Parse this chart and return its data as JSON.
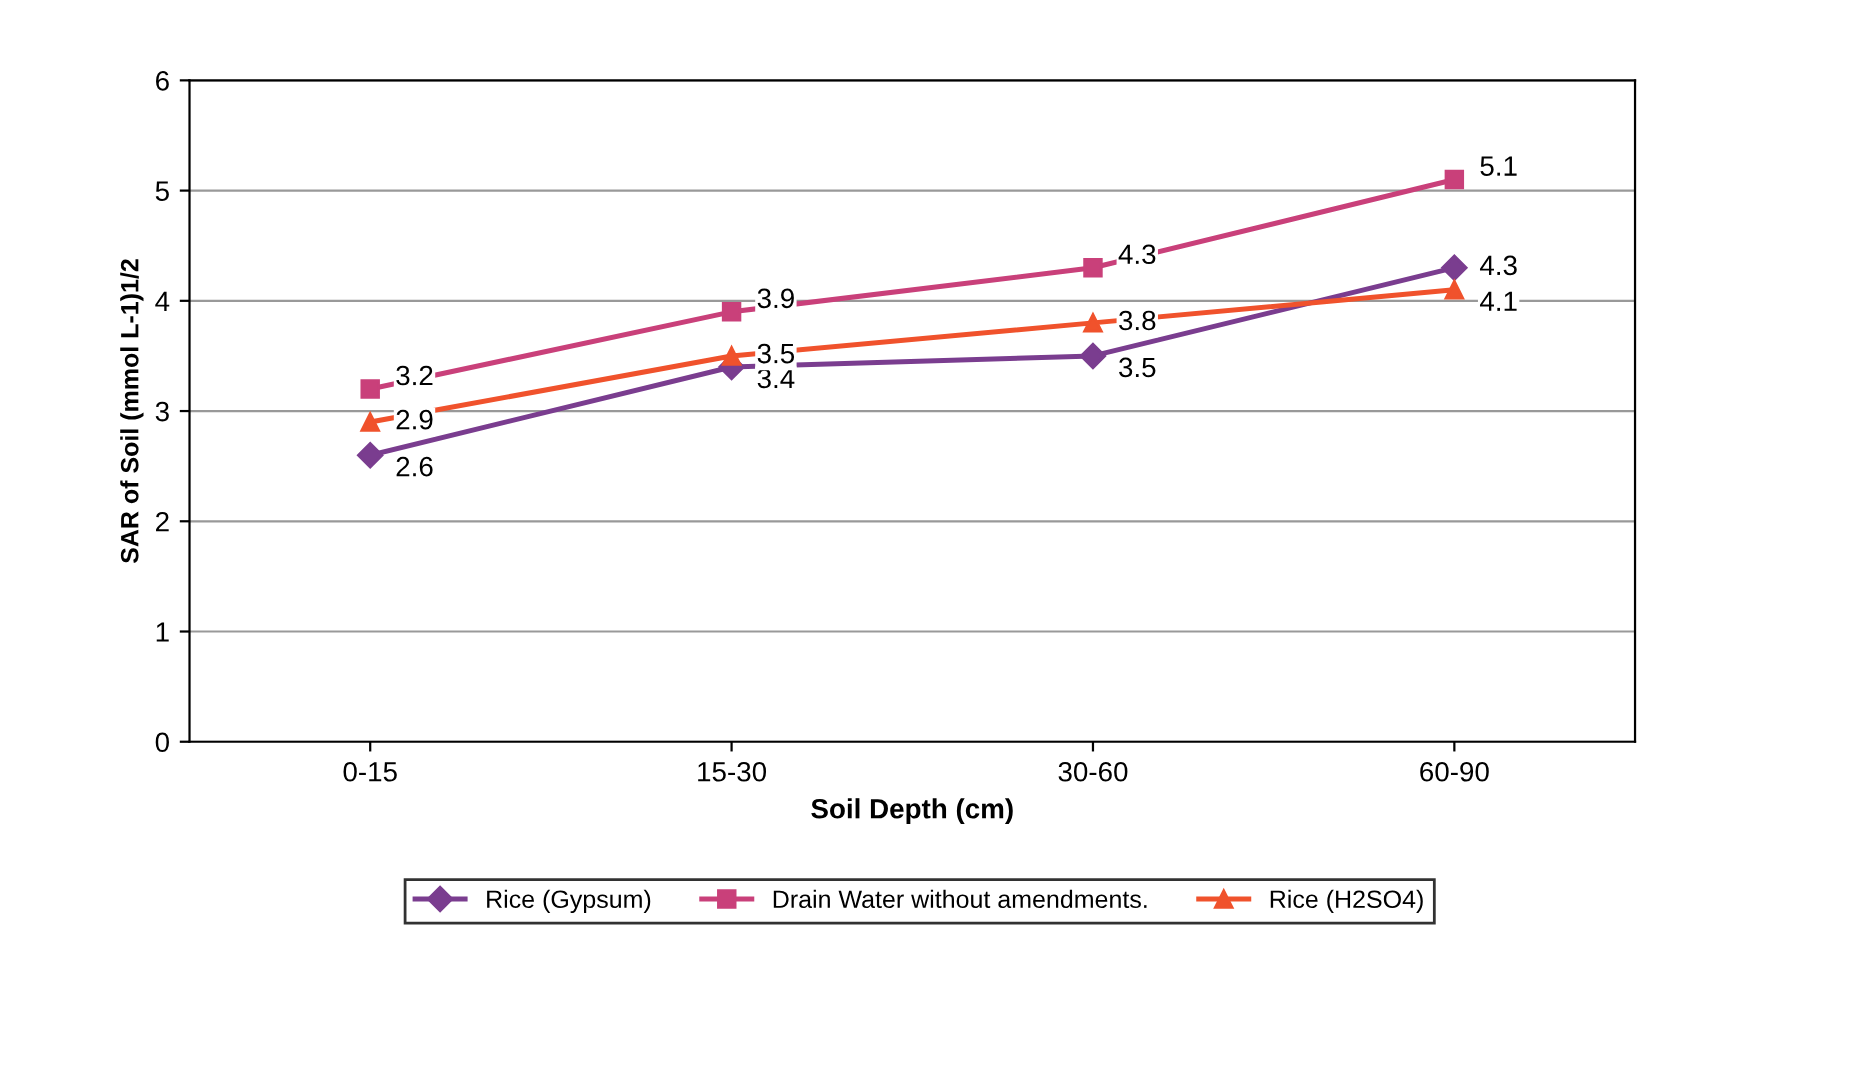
{
  "chart_data": {
    "type": "line",
    "xlabel": "Soil Depth (cm)",
    "ylabel": "SAR of Soil (mmol L-1)1/2",
    "categories": [
      "0-15",
      "15-30",
      "30-60",
      "60-90"
    ],
    "series": [
      {
        "name": "Rice (Gypsum)",
        "color": "#7a3d8f",
        "marker": "diamond",
        "values": [
          2.6,
          3.4,
          3.5,
          4.3
        ]
      },
      {
        "name": "Drain Water without amendments.",
        "color": "#c9407a",
        "marker": "square",
        "values": [
          3.2,
          3.9,
          4.3,
          5.1
        ]
      },
      {
        "name": "Rice (H2SO4)",
        "color": "#f0522c",
        "marker": "triangle",
        "values": [
          2.9,
          3.5,
          3.8,
          4.1
        ]
      }
    ],
    "ylim": [
      0,
      6
    ],
    "yticks": [
      0,
      1,
      2,
      3,
      4,
      5,
      6
    ],
    "grid": "y",
    "legend": "bottom",
    "data_labels": true
  }
}
